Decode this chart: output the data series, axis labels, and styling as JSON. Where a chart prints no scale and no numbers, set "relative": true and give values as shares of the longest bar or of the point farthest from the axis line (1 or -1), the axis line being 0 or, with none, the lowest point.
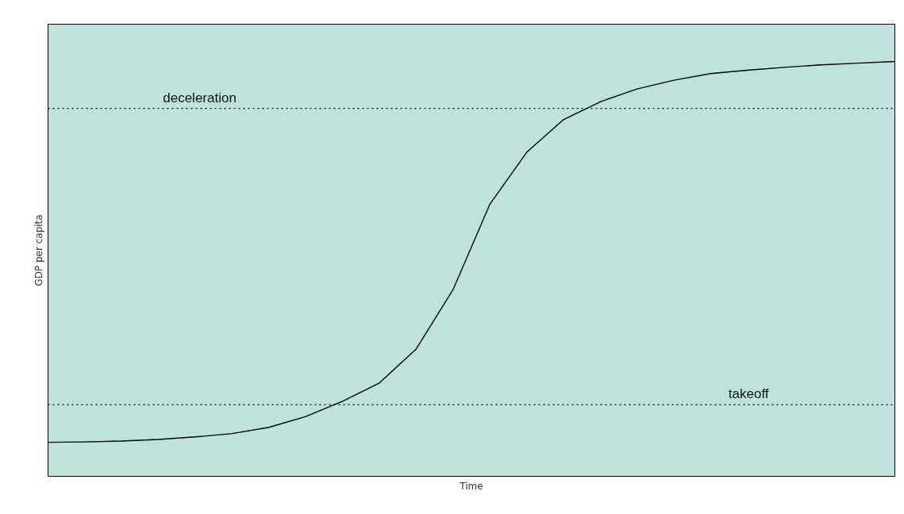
{
  "chart_data": {
    "type": "line",
    "relative": true,
    "xlabel": "Time",
    "ylabel": "GDP per capita",
    "categories": [
      null,
      null,
      null,
      null,
      null,
      null,
      null,
      null,
      null,
      null,
      null,
      null,
      null,
      null,
      null,
      null,
      null,
      null,
      null,
      null,
      null,
      null,
      null,
      null
    ],
    "series": [
      {
        "color": "#000000",
        "values": [
          0.082,
          0.083,
          0.085,
          0.089,
          0.095,
          0.103,
          0.118,
          0.144,
          0.181,
          0.225,
          0.307,
          0.45,
          0.656,
          0.781,
          0.86,
          0.903,
          0.934,
          0.955,
          0.971,
          0.979,
          0.986,
          0.992,
          0.996,
          1
        ]
      }
    ],
    "ref_lines": [
      {
        "axis": "y",
        "value": 0.887,
        "label": "deceleration",
        "color": "#000000",
        "line_style": "dotted"
      },
      {
        "axis": "y",
        "value": 0.173,
        "label": "takeoff",
        "color": "#000000",
        "line_style": "dotted"
      }
    ],
    "marker": "none",
    "line_style": "solid"
  }
}
